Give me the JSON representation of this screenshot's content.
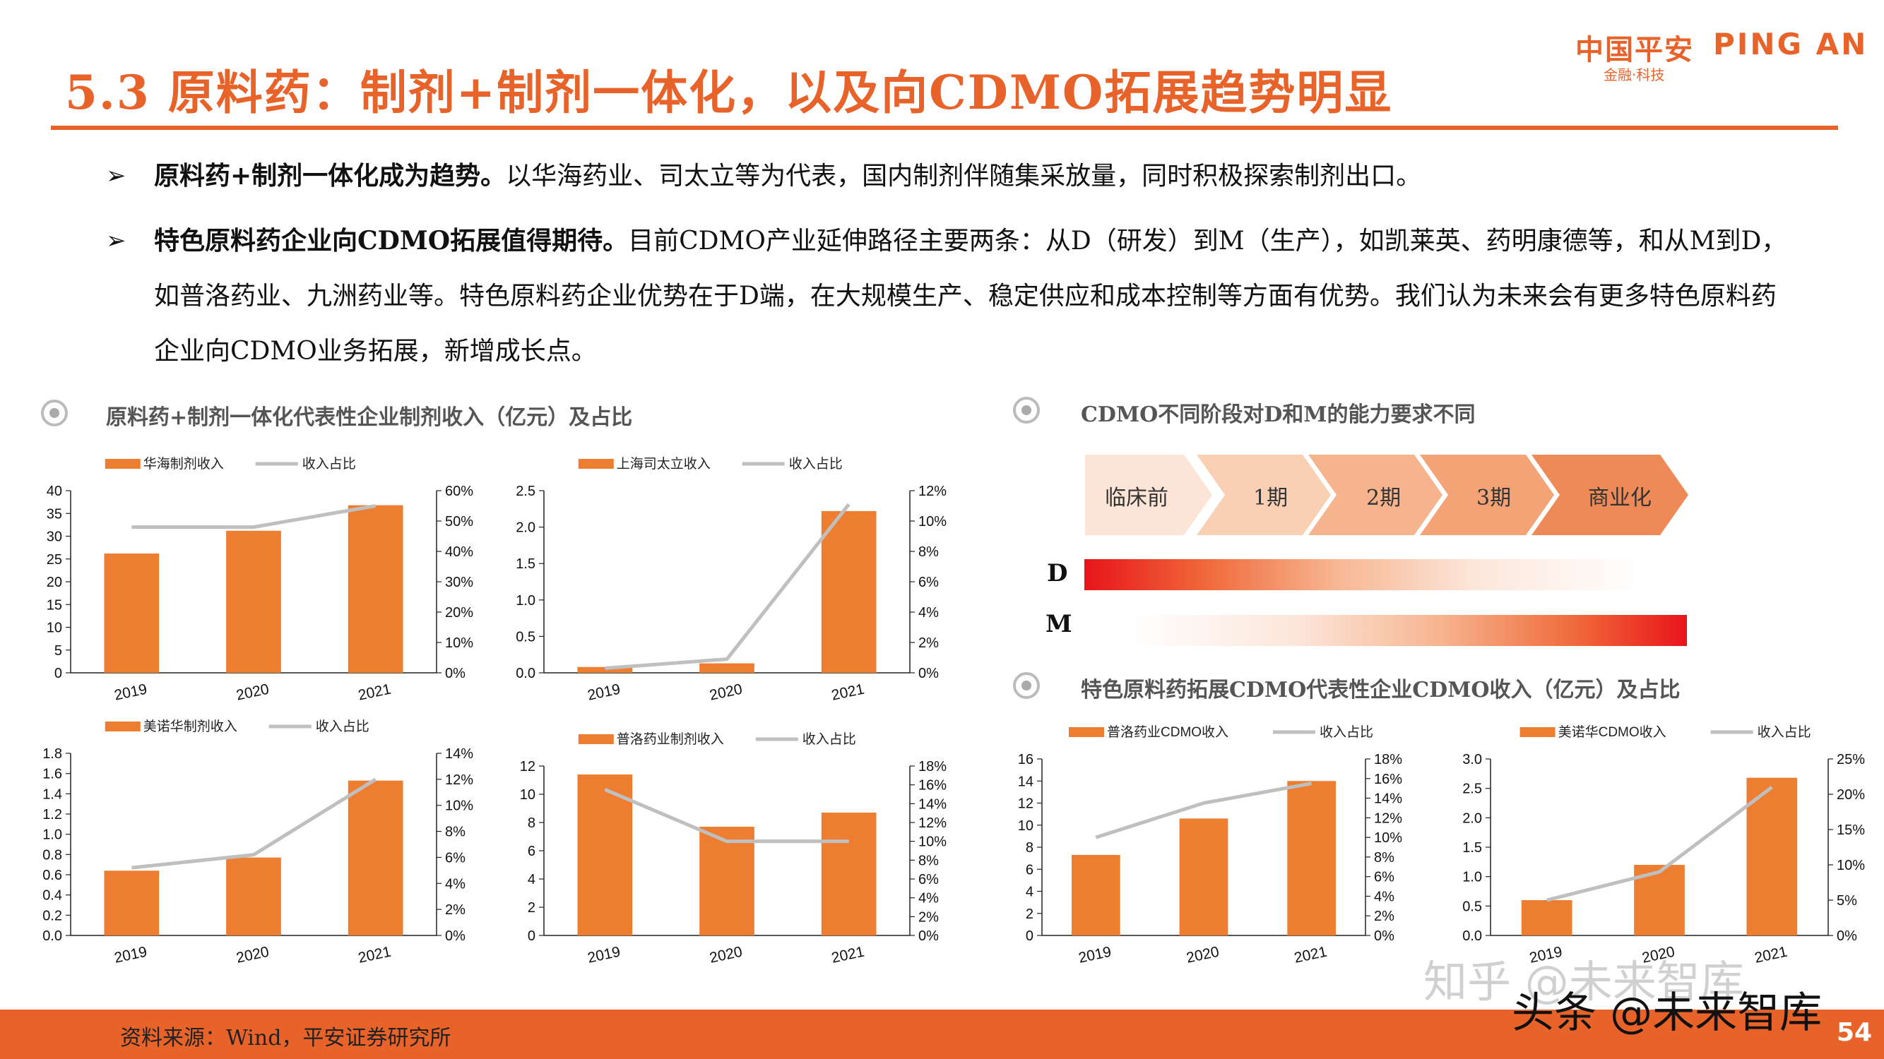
{
  "header": {
    "title": "5.3 原料药：制剂+制剂一体化，以及向CDMO拓展趋势明显",
    "logo_cn": "中国平安",
    "logo_en": "PING AN",
    "logo_sub": "金融·科技"
  },
  "bullets": [
    {
      "marker": "➢",
      "bold": "原料药+制剂一体化成为趋势。",
      "text": "以华海药业、司太立等为代表，国内制剂伴随集采放量，同时积极探索制剂出口。"
    },
    {
      "marker": "➢",
      "bold": "特色原料药企业向CDMO拓展值得期待。",
      "text": "目前CDMO产业延伸路径主要两条：从D（研发）到M（生产），如凯莱英、药明康德等，和从M到D，如普洛药业、九洲药业等。特色原料药企业优势在于D端，在大规模生产、稳定供应和成本控制等方面有优势。我们认为未来会有更多特色原料药企业向CDMO业务拓展，新增成长点。"
    }
  ],
  "sections": {
    "left": "原料药+制剂一体化代表性企业制剂收入（亿元）及占比",
    "right_top": "CDMO不同阶段对D和M的能力要求不同",
    "right_bottom": "特色原料药拓展CDMO代表性企业CDMO收入（亿元）及占比"
  },
  "diagram": {
    "stages": [
      "临床前",
      "1期",
      "2期",
      "3期",
      "商业化"
    ],
    "stage_colors": [
      "#FCE4D6",
      "#F9D0B4",
      "#F5B48E",
      "#F3A376",
      "#EE8A57"
    ],
    "bar_labels": [
      "D",
      "M"
    ],
    "bar_color": "#E8141B"
  },
  "colors": {
    "accent": "#E8632A",
    "bar": "#ED7D31",
    "line": "#BFBFBF"
  },
  "chart_data": [
    {
      "id": "huahai",
      "type": "bar",
      "categories": [
        "2019",
        "2020",
        "2021"
      ],
      "series": [
        {
          "name": "华海制剂收入",
          "type": "bar",
          "axis": "left",
          "values": [
            26.2,
            31.2,
            36.8
          ]
        },
        {
          "name": "收入占比",
          "type": "line",
          "axis": "right",
          "values": [
            0.48,
            0.48,
            0.55
          ]
        }
      ],
      "y_left": {
        "min": 0,
        "max": 40,
        "ticks": [
          0,
          5,
          10,
          15,
          20,
          25,
          30,
          35,
          40
        ],
        "labels": [
          "0",
          "5",
          "10",
          "15",
          "20",
          "25",
          "30",
          "35",
          "40"
        ]
      },
      "y_right": {
        "min": 0,
        "max": 0.6,
        "ticks": [
          0,
          0.1,
          0.2,
          0.3,
          0.4,
          0.5,
          0.6
        ],
        "labels": [
          "0%",
          "10%",
          "20%",
          "30%",
          "40%",
          "50%",
          "60%"
        ]
      }
    },
    {
      "id": "situoli",
      "type": "bar",
      "categories": [
        "2019",
        "2020",
        "2021"
      ],
      "series": [
        {
          "name": "上海司太立收入",
          "type": "bar",
          "axis": "left",
          "values": [
            0.08,
            0.13,
            2.22
          ]
        },
        {
          "name": "收入占比",
          "type": "line",
          "axis": "right",
          "values": [
            0.003,
            0.009,
            0.111
          ]
        }
      ],
      "y_left": {
        "min": 0,
        "max": 2.5,
        "ticks": [
          0,
          0.5,
          1,
          1.5,
          2,
          2.5
        ],
        "labels": [
          "0.0",
          "0.5",
          "1.0",
          "1.5",
          "2.0",
          "2.5"
        ]
      },
      "y_right": {
        "min": 0,
        "max": 0.12,
        "ticks": [
          0,
          0.02,
          0.04,
          0.06,
          0.08,
          0.1,
          0.12
        ],
        "labels": [
          "0%",
          "2%",
          "4%",
          "6%",
          "8%",
          "10%",
          "12%"
        ]
      }
    },
    {
      "id": "meinuohua",
      "type": "bar",
      "categories": [
        "2019",
        "2020",
        "2021"
      ],
      "series": [
        {
          "name": "美诺华制剂收入",
          "type": "bar",
          "axis": "left",
          "values": [
            0.64,
            0.77,
            1.53
          ]
        },
        {
          "name": "收入占比",
          "type": "line",
          "axis": "right",
          "values": [
            0.052,
            0.062,
            0.12
          ]
        }
      ],
      "y_left": {
        "min": 0,
        "max": 1.8,
        "ticks": [
          0,
          0.2,
          0.4,
          0.6,
          0.8,
          1,
          1.2,
          1.4,
          1.6,
          1.8
        ],
        "labels": [
          "0.0",
          "0.2",
          "0.4",
          "0.6",
          "0.8",
          "1.0",
          "1.2",
          "1.4",
          "1.6",
          "1.8"
        ]
      },
      "y_right": {
        "min": 0,
        "max": 0.14,
        "ticks": [
          0,
          0.02,
          0.04,
          0.06,
          0.08,
          0.1,
          0.12,
          0.14
        ],
        "labels": [
          "0%",
          "2%",
          "4%",
          "6%",
          "8%",
          "10%",
          "12%",
          "14%"
        ]
      }
    },
    {
      "id": "puluo_zhiji",
      "type": "bar",
      "categories": [
        "2019",
        "2020",
        "2021"
      ],
      "series": [
        {
          "name": "普洛药业制剂收入",
          "type": "bar",
          "axis": "left",
          "values": [
            11.4,
            7.7,
            8.7
          ]
        },
        {
          "name": "收入占比",
          "type": "line",
          "axis": "right",
          "values": [
            0.155,
            0.1,
            0.1
          ]
        }
      ],
      "y_left": {
        "min": 0,
        "max": 12,
        "ticks": [
          0,
          2,
          4,
          6,
          8,
          10,
          12
        ],
        "labels": [
          "0",
          "2",
          "4",
          "6",
          "8",
          "10",
          "12"
        ]
      },
      "y_right": {
        "min": 0,
        "max": 0.18,
        "ticks": [
          0,
          0.02,
          0.04,
          0.06,
          0.08,
          0.1,
          0.12,
          0.14,
          0.16,
          0.18
        ],
        "labels": [
          "0%",
          "2%",
          "4%",
          "6%",
          "8%",
          "10%",
          "12%",
          "14%",
          "16%",
          "18%"
        ]
      }
    },
    {
      "id": "puluo_cdmo",
      "type": "bar",
      "categories": [
        "2019",
        "2020",
        "2021"
      ],
      "series": [
        {
          "name": "普洛药业CDMO收入",
          "type": "bar",
          "axis": "left",
          "values": [
            7.3,
            10.6,
            14.0
          ]
        },
        {
          "name": "收入占比",
          "type": "line",
          "axis": "right",
          "values": [
            0.1,
            0.135,
            0.155
          ]
        }
      ],
      "y_left": {
        "min": 0,
        "max": 16,
        "ticks": [
          0,
          2,
          4,
          6,
          8,
          10,
          12,
          14,
          16
        ],
        "labels": [
          "0",
          "2",
          "4",
          "6",
          "8",
          "10",
          "12",
          "14",
          "16"
        ]
      },
      "y_right": {
        "min": 0,
        "max": 0.18,
        "ticks": [
          0,
          0.02,
          0.04,
          0.06,
          0.08,
          0.1,
          0.12,
          0.14,
          0.16,
          0.18
        ],
        "labels": [
          "0%",
          "2%",
          "4%",
          "6%",
          "8%",
          "10%",
          "12%",
          "14%",
          "16%",
          "18%"
        ]
      }
    },
    {
      "id": "meinuohua_cdmo",
      "type": "bar",
      "categories": [
        "2019",
        "2020",
        "2021"
      ],
      "series": [
        {
          "name": "美诺华CDMO收入",
          "type": "bar",
          "axis": "left",
          "values": [
            0.6,
            1.2,
            2.68
          ]
        },
        {
          "name": "收入占比",
          "type": "line",
          "axis": "right",
          "values": [
            0.05,
            0.09,
            0.21
          ]
        }
      ],
      "y_left": {
        "min": 0,
        "max": 3,
        "ticks": [
          0,
          0.5,
          1,
          1.5,
          2,
          2.5,
          3
        ],
        "labels": [
          "0.0",
          "0.5",
          "1.0",
          "1.5",
          "2.0",
          "2.5",
          "3.0"
        ]
      },
      "y_right": {
        "min": 0,
        "max": 0.25,
        "ticks": [
          0,
          0.05,
          0.1,
          0.15,
          0.2,
          0.25
        ],
        "labels": [
          "0%",
          "5%",
          "10%",
          "15%",
          "20%",
          "25%"
        ]
      }
    }
  ],
  "footer": {
    "source": "资料来源：Wind，平安证券研究所",
    "page": "54",
    "watermark": "头条 @未来智库",
    "watermark2": "知乎 @未来智库"
  }
}
